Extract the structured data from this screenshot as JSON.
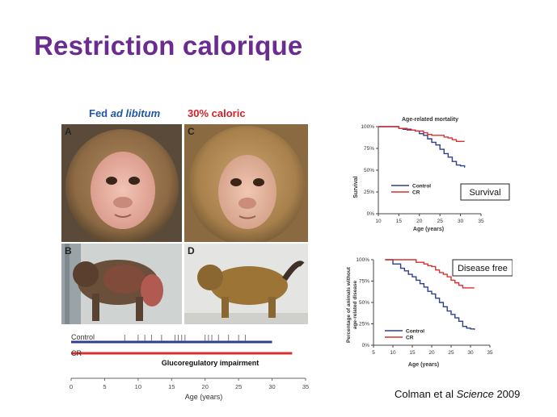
{
  "slide": {
    "title": "Restriction calorique",
    "citation_authors": "Colman et al ",
    "citation_journal": "Science",
    "citation_year": " 2009"
  },
  "photos": {
    "col1_header_prefix": "Fed ",
    "col1_header_emph": "ad libitum",
    "col2_header": "30% caloric",
    "panels": [
      {
        "id": "A",
        "label": "A"
      },
      {
        "id": "B",
        "label": "B"
      },
      {
        "id": "C",
        "label": "C"
      },
      {
        "id": "D",
        "label": "D"
      }
    ]
  },
  "colors": {
    "title": "#6b2c91",
    "control": "#2e3f8f",
    "cr": "#d9312e"
  },
  "chart_data": [
    {
      "type": "line",
      "id": "survival",
      "title": "Age-related mortality",
      "annotation": "Survival",
      "xlabel": "Age (years)",
      "ylabel": "Survival",
      "xlim": [
        10,
        35
      ],
      "ylim": [
        0,
        100
      ],
      "xticks": [
        "10",
        "15",
        "20",
        "25",
        "30",
        "35"
      ],
      "yticks": [
        "0%",
        "25%",
        "50%",
        "75%",
        "100%"
      ],
      "legend": "bottom-left",
      "series": [
        {
          "name": "Control",
          "x": [
            10,
            13,
            15,
            16,
            18,
            19,
            20,
            21,
            22,
            23,
            24,
            25,
            26,
            27,
            28,
            29,
            30,
            31
          ],
          "y": [
            100,
            100,
            98,
            97,
            96,
            95,
            92,
            90,
            86,
            82,
            79,
            74,
            69,
            65,
            60,
            56,
            55,
            53
          ]
        },
        {
          "name": "CR",
          "x": [
            10,
            13,
            15,
            17,
            19,
            21,
            22,
            23,
            25,
            26,
            27,
            28,
            29,
            30,
            31
          ],
          "y": [
            100,
            100,
            98,
            96,
            95,
            93,
            91,
            90,
            90,
            88,
            87,
            85,
            83,
            83,
            83
          ]
        }
      ]
    },
    {
      "type": "line",
      "id": "disease_free",
      "title": "",
      "annotation": "Disease free",
      "xlabel": "Age (years)",
      "ylabel": "Percentage of animals without age-related disease",
      "ylabel_line1": "Percentage of animals without",
      "ylabel_line2": "age-related disease",
      "xlim": [
        5,
        35
      ],
      "ylim": [
        0,
        100
      ],
      "xticks": [
        "5",
        "10",
        "15",
        "20",
        "25",
        "30",
        "35"
      ],
      "yticks": [
        "0%",
        "25%",
        "50%",
        "75%",
        "100%"
      ],
      "legend": "bottom-left",
      "series": [
        {
          "name": "Control",
          "x": [
            8,
            10,
            12,
            13,
            14,
            15,
            16,
            17,
            18,
            19,
            20,
            21,
            22,
            23,
            24,
            25,
            26,
            27,
            28,
            29,
            30,
            31
          ],
          "y": [
            100,
            95,
            90,
            87,
            83,
            80,
            76,
            72,
            68,
            63,
            60,
            55,
            50,
            45,
            40,
            36,
            32,
            28,
            22,
            20,
            19,
            18
          ]
        },
        {
          "name": "CR",
          "x": [
            8,
            12,
            14,
            16,
            18,
            19,
            20,
            21,
            22,
            23,
            24,
            25,
            26,
            27,
            28,
            29,
            30,
            31
          ],
          "y": [
            100,
            100,
            100,
            97,
            95,
            93,
            92,
            88,
            85,
            83,
            80,
            76,
            73,
            70,
            67,
            67,
            67,
            67
          ]
        }
      ]
    },
    {
      "type": "timeline",
      "id": "glucoregulatory",
      "annotation": "Glucoregulatory impairment",
      "xlabel": "Age (years)",
      "xlim": [
        0,
        35
      ],
      "xticks": [
        "0",
        "5",
        "10",
        "15",
        "20",
        "25",
        "30",
        "35"
      ],
      "series": [
        {
          "name": "Control",
          "end": 30,
          "events": [
            8,
            10,
            11,
            12,
            13.5,
            15.5,
            16,
            16.5,
            17,
            20,
            20.5,
            21,
            22,
            23.5,
            25,
            26
          ]
        },
        {
          "name": "CR",
          "end": 33,
          "events": []
        }
      ]
    }
  ]
}
